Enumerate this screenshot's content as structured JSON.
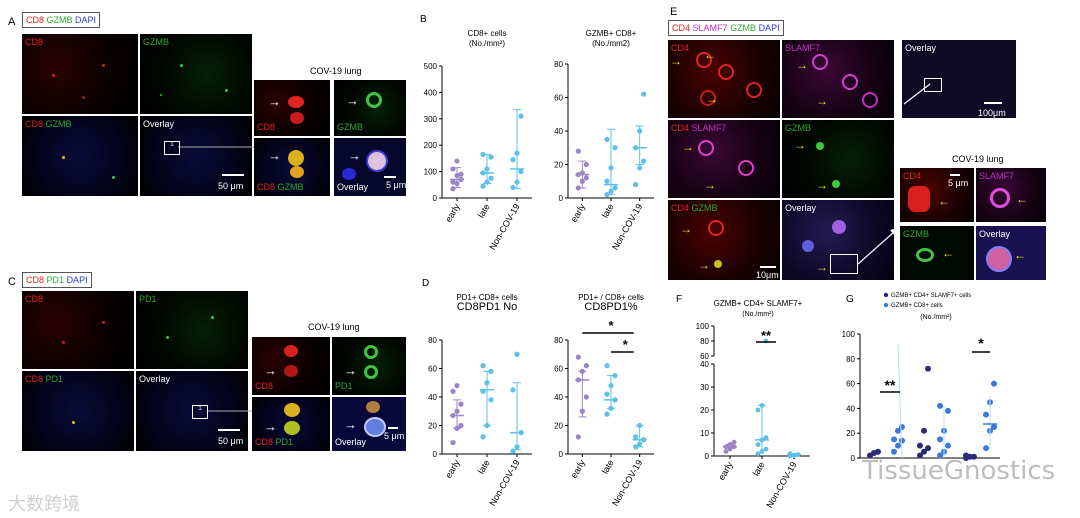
{
  "panels": {
    "A": {
      "letter": "A",
      "legend": {
        "cd8": "CD8",
        "gzmb": "GZMB",
        "dapi": "DAPI"
      },
      "tiles": {
        "cd8": "CD8",
        "gzmb": "GZMB",
        "cd8_2": "CD8",
        "gzmb_2": "GZMB",
        "overlay": "Overlay"
      },
      "inset_title": "COV-19 lung",
      "inset_labels": {
        "cd8": "CD8",
        "gzmb": "GZMB",
        "cd8_2": "CD8",
        "gzmb_2": "GZMB",
        "overlay": "Overlay"
      },
      "scale_main": "50 μm",
      "scale_inset": "5 μm",
      "box_number": "1"
    },
    "C": {
      "letter": "C",
      "legend": {
        "cd8": "CD8",
        "pd1": "PD1",
        "dapi": "DAPI"
      },
      "tiles": {
        "cd8": "CD8",
        "pd1": "PD1",
        "cd8_2": "CD8",
        "pd1_2": "PD1",
        "overlay": "Overlay"
      },
      "inset_title": "COV-19 lung",
      "inset_labels": {
        "cd8": "CD8",
        "pd1": "PD1",
        "cd8_2": "CD8",
        "pd1_2": "PD1",
        "overlay": "Overlay"
      },
      "scale_main": "50 μm",
      "scale_inset": "5 μm",
      "box_number": "1"
    },
    "E": {
      "letter": "E",
      "legend": {
        "cd4": "CD4",
        "slamf7": "SLAMF7",
        "gzmb": "GZMB",
        "dapi": "DAPI"
      },
      "tiles": {
        "cd4": "CD4",
        "slamf7": "SLAMF7",
        "overlay1": "Overlay",
        "cd4_2": "CD4",
        "slamf7_2": "SLAMF7",
        "gzmb": "GZMB",
        "cd4_3": "CD4",
        "gzmb_2": "GZMB",
        "overlay2": "Overlay"
      },
      "inset_title": "COV-19 lung",
      "inset_labels": {
        "cd4": "CD4",
        "slamf7": "SLAMF7",
        "gzmb": "GZMB",
        "overlay": "Overlay"
      },
      "scale_overlay": "100μm",
      "scale_main": "10μm",
      "scale_inset": "5 μm"
    }
  },
  "chart_data": [
    {
      "panel": "B",
      "type": "scatter",
      "title": "CD8+ cells",
      "subtitle": "(No./mm²)",
      "categories": [
        "early",
        "late",
        "Non-COV-19"
      ],
      "ylim": [
        0,
        500
      ],
      "yticks": [
        0,
        100,
        200,
        300,
        400,
        500
      ],
      "groups": [
        {
          "points": [
            35,
            55,
            70,
            60,
            85,
            90,
            110,
            140
          ],
          "median": 70,
          "low": 40,
          "high": 115
        },
        {
          "points": [
            45,
            60,
            75,
            95,
            110,
            155,
            165
          ],
          "median": 95,
          "low": 55,
          "high": 165
        },
        {
          "points": [
            40,
            60,
            100,
            145,
            170,
            310
          ],
          "median": 110,
          "low": 35,
          "high": 335
        }
      ],
      "colors": [
        "#9b86c4",
        "#5cc0e8",
        "#5cc0e8"
      ]
    },
    {
      "panel": "B2",
      "type": "scatter",
      "title": "GZMB+ CD8+",
      "subtitle": "(No./mm2)",
      "categories": [
        "early",
        "late",
        "Non-COV-19"
      ],
      "ylim": [
        0,
        80
      ],
      "yticks": [
        0,
        20,
        40,
        60,
        80
      ],
      "groups": [
        {
          "points": [
            6,
            10,
            12,
            14,
            15,
            20,
            28
          ],
          "median": 14,
          "low": 6,
          "high": 22
        },
        {
          "points": [
            2,
            4,
            6,
            10,
            18,
            30,
            35
          ],
          "median": 8,
          "low": 2,
          "high": 41
        },
        {
          "points": [
            8,
            18,
            22,
            30,
            40,
            62
          ],
          "median": 30,
          "low": 20,
          "high": 43
        }
      ],
      "colors": [
        "#9b86c4",
        "#5cc0e8",
        "#5cc0e8"
      ]
    },
    {
      "panel": "D",
      "type": "scatter",
      "title": "PD1+ CD8+ cells",
      "subtitle": "CD8PD1 No",
      "categories": [
        "early",
        "late",
        "Non-COV-19"
      ],
      "ylim": [
        0,
        80
      ],
      "yticks": [
        0,
        20,
        40,
        60,
        80
      ],
      "groups": [
        {
          "points": [
            8,
            18,
            20,
            27,
            30,
            35,
            44,
            48
          ],
          "median": 27,
          "low": 18,
          "high": 38
        },
        {
          "points": [
            12,
            20,
            38,
            44,
            50,
            58,
            62
          ],
          "median": 45,
          "low": 20,
          "high": 58
        },
        {
          "points": [
            2,
            5,
            15,
            45,
            70
          ],
          "median": 15,
          "low": 3,
          "high": 50
        }
      ],
      "colors": [
        "#9b86c4",
        "#5cc0e8",
        "#5cc0e8"
      ]
    },
    {
      "panel": "D2",
      "type": "scatter",
      "title": "PD1+ / CD8+ cells",
      "subtitle": "CD8PD1%",
      "categories": [
        "early",
        "late",
        "Non-COV-19"
      ],
      "ylim": [
        0,
        80
      ],
      "yticks": [
        0,
        20,
        40,
        60,
        80
      ],
      "groups": [
        {
          "points": [
            12,
            30,
            40,
            52,
            58,
            62,
            68
          ],
          "median": 52,
          "low": 26,
          "high": 58
        },
        {
          "points": [
            28,
            32,
            38,
            42,
            48,
            55,
            62
          ],
          "median": 38,
          "low": 32,
          "high": 55
        },
        {
          "points": [
            5,
            7,
            10,
            12,
            20
          ],
          "median": 10,
          "low": 5,
          "high": 20
        }
      ],
      "significance": [
        "*",
        "*"
      ],
      "colors": [
        "#9b86c4",
        "#5cc0e8",
        "#5cc0e8"
      ]
    },
    {
      "panel": "F",
      "type": "scatter",
      "title": "GZMB+ CD4+ SLAMF7+",
      "subtitle": "(No./mm²)",
      "categories": [
        "early",
        "late",
        "Non-COV-19"
      ],
      "yticks_lower": [
        0,
        10,
        20,
        30,
        40
      ],
      "yticks_upper": [
        60,
        80,
        100
      ],
      "groups": [
        {
          "points": [
            2,
            3,
            4,
            4,
            5,
            6
          ],
          "median": 4,
          "low": 3,
          "high": 5
        },
        {
          "points": [
            1,
            2,
            3,
            5,
            7,
            8,
            20,
            22,
            80
          ],
          "median": 7,
          "low": 2,
          "high": 22
        },
        {
          "points": [
            0,
            0.3,
            0.6,
            1
          ],
          "median": 0.5,
          "low": 0,
          "high": 1
        }
      ],
      "significance": [
        "**"
      ],
      "colors": [
        "#9b86c4",
        "#5cc0e8",
        "#5cc0e8"
      ]
    },
    {
      "panel": "G",
      "type": "scatter",
      "title": "(No./mm²)",
      "legend": [
        "GZMB+ CD4+ SLAMF7+ cells",
        "GZMB+ CD8+ cells"
      ],
      "yticks": [
        0,
        20,
        40,
        60,
        80,
        100
      ],
      "groups": [
        {
          "points": [
            2,
            4,
            5
          ],
          "color": "#2c2a78"
        },
        {
          "points": [
            5,
            10,
            14,
            15,
            22,
            25
          ],
          "color": "#3a7ad8"
        },
        {
          "points": [
            2,
            5,
            8,
            10,
            22,
            72
          ],
          "color": "#2c2a78"
        },
        {
          "points": [
            2,
            5,
            10,
            15,
            22,
            38,
            42
          ],
          "color": "#3a7ad8"
        },
        {
          "points": [
            0,
            1,
            1,
            2
          ],
          "color": "#2c2a78"
        },
        {
          "points": [
            8,
            22,
            25,
            35,
            45,
            60
          ],
          "color": "#3a7ad8"
        }
      ],
      "significance": [
        "**",
        "*"
      ]
    }
  ],
  "panel_letters": {
    "B": "B",
    "D": "D",
    "F": "F",
    "G": "G"
  },
  "watermarks": {
    "left": "大数跨境",
    "right": "TissueGnostics"
  }
}
